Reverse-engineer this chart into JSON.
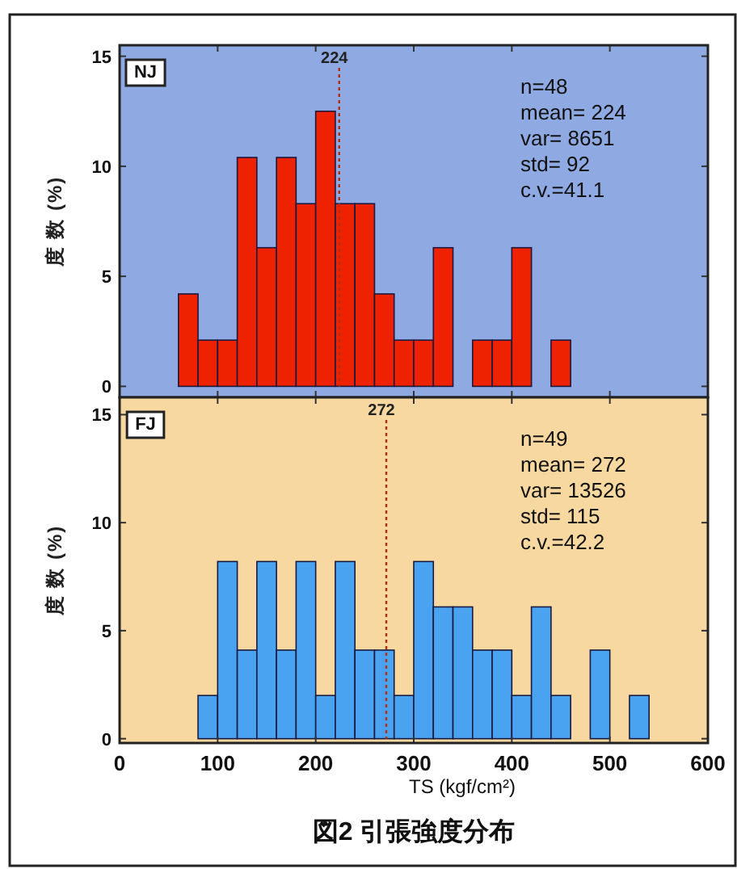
{
  "chart_data": [
    {
      "type": "histogram",
      "title": "NJ",
      "ylabel": "度 数 (%)",
      "bins": [
        60,
        80,
        100,
        120,
        140,
        160,
        180,
        200,
        220,
        240,
        260,
        280,
        300,
        320,
        340,
        360,
        380,
        400,
        420,
        440,
        460
      ],
      "values": [
        4.2,
        2.1,
        2.1,
        10.4,
        6.3,
        10.4,
        8.3,
        12.5,
        8.3,
        8.3,
        4.2,
        2.1,
        2.1,
        6.3,
        0,
        2.1,
        2.1,
        6.3,
        0,
        2.1
      ],
      "color": "#ee2200",
      "xlim": [
        0,
        600
      ],
      "ylim": [
        -0.5,
        15.5
      ],
      "xticks": [
        0,
        100,
        200,
        300,
        400,
        500,
        600
      ],
      "yticks": [
        0,
        5,
        10,
        15
      ],
      "tick_labels": "y",
      "ref_lines": [
        {
          "axis": "x",
          "value": 224,
          "label": "224",
          "color": "#b03010",
          "line_style": "dotted"
        }
      ],
      "annotations": [
        "n=48\nmean= 224\nvar= 8651\nstd= 92\nc.v.=41.1"
      ]
    },
    {
      "type": "histogram",
      "title": "FJ",
      "ylabel": "度 数 (%)",
      "xlabel": "TS (kgf/cm²)",
      "bins": [
        80,
        100,
        120,
        140,
        160,
        180,
        200,
        220,
        240,
        260,
        280,
        300,
        320,
        340,
        360,
        380,
        400,
        420,
        440,
        460,
        480,
        500,
        520,
        540
      ],
      "values": [
        2,
        8.2,
        4.1,
        8.2,
        4.1,
        8.2,
        2,
        8.2,
        4.1,
        4.1,
        2,
        8.2,
        6.1,
        6.1,
        4.1,
        4.1,
        2,
        6.1,
        2,
        0,
        4.1,
        0,
        2
      ],
      "color": "#4aa3f0",
      "xlim": [
        0,
        600
      ],
      "ylim": [
        -0.2,
        15.8
      ],
      "xticks": [
        0,
        100,
        200,
        300,
        400,
        500,
        600
      ],
      "yticks": [
        0,
        5,
        10,
        15
      ],
      "ref_lines": [
        {
          "axis": "x",
          "value": 272,
          "label": "272",
          "color": "#b03010",
          "line_style": "dotted"
        }
      ],
      "annotations": [
        "n=49\nmean= 272\nvar= 13526\nstd= 115\nc.v.=42.2",
        "図2 引張強度分布"
      ]
    }
  ]
}
